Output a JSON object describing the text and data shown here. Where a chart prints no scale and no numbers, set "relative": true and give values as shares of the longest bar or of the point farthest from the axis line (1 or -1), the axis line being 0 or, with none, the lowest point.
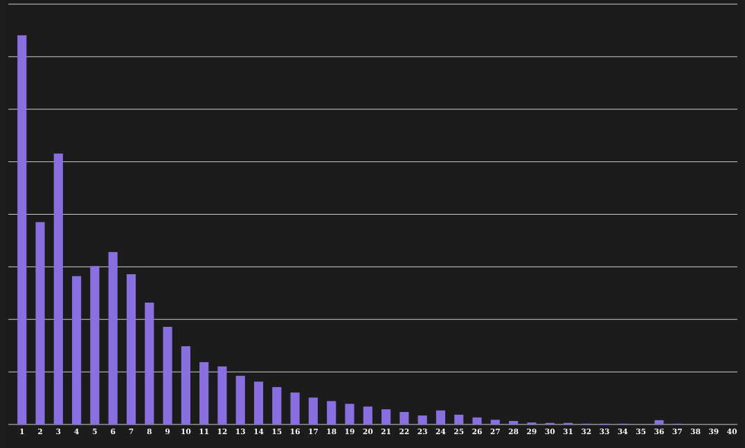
{
  "chart_data": {
    "type": "bar",
    "relative": true,
    "categories": [
      "1",
      "2",
      "3",
      "4",
      "5",
      "6",
      "7",
      "8",
      "9",
      "10",
      "11",
      "12",
      "13",
      "14",
      "15",
      "16",
      "17",
      "18",
      "19",
      "20",
      "21",
      "22",
      "23",
      "24",
      "25",
      "26",
      "27",
      "28",
      "29",
      "30",
      "31",
      "32",
      "33",
      "34",
      "35",
      "36",
      "37",
      "38",
      "39",
      "40"
    ],
    "values": [
      1,
      0.52,
      0.696,
      0.381,
      0.407,
      0.443,
      0.386,
      0.313,
      0.251,
      0.201,
      0.16,
      0.149,
      0.125,
      0.11,
      0.096,
      0.082,
      0.069,
      0.06,
      0.053,
      0.046,
      0.039,
      0.032,
      0.023,
      0.036,
      0.025,
      0.018,
      0.012,
      0.009,
      0.005,
      0.004,
      0.004,
      0.002,
      0.002,
      0.002,
      0,
      0.011,
      0.002,
      0,
      0,
      0
    ],
    "color": "#8a6fe0",
    "grid": "y",
    "tick_labels": "x"
  }
}
